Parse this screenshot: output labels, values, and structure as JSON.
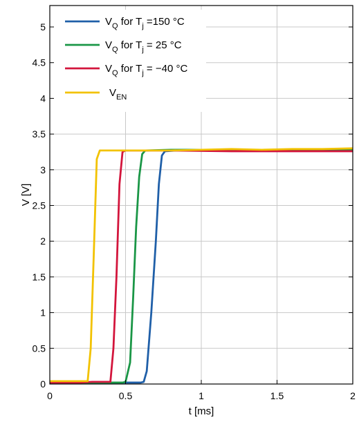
{
  "chart_data": {
    "type": "line",
    "xlabel": "t [ms]",
    "ylabel": "V [V]",
    "xlim": [
      0,
      2
    ],
    "ylim": [
      0,
      5.3
    ],
    "xticks": [
      0,
      0.5,
      1,
      1.5,
      2
    ],
    "xtick_labels": [
      "0",
      "0.5",
      "1",
      "1.5",
      "2"
    ],
    "yticks": [
      0,
      0.5,
      1,
      1.5,
      2,
      2.5,
      3,
      3.5,
      4,
      4.5,
      5
    ],
    "ytick_labels": [
      "0",
      "0.5",
      "1",
      "1.5",
      "2",
      "2.5",
      "3",
      "3.5",
      "4",
      "4.5",
      "5"
    ],
    "grid": true,
    "legend_position": "top-left",
    "series": [
      {
        "legend": {
          "main": "V",
          "sub": "Q",
          "mid": " for T",
          "sub2": "j",
          "rest": " =150 °C"
        },
        "color": "#1f5fa8",
        "points": [
          [
            0,
            0.02
          ],
          [
            0.2,
            0.02
          ],
          [
            0.4,
            0.02
          ],
          [
            0.6,
            0.02
          ],
          [
            0.62,
            0.03
          ],
          [
            0.64,
            0.18
          ],
          [
            0.67,
            1.0
          ],
          [
            0.7,
            2.0
          ],
          [
            0.72,
            2.8
          ],
          [
            0.74,
            3.2
          ],
          [
            0.76,
            3.26
          ],
          [
            0.9,
            3.28
          ],
          [
            1.2,
            3.28
          ],
          [
            1.5,
            3.28
          ],
          [
            1.8,
            3.28
          ],
          [
            2.0,
            3.28
          ]
        ]
      },
      {
        "legend": {
          "main": "V",
          "sub": "Q",
          "mid": " for T",
          "sub2": "j",
          "rest": " = 25 °C"
        },
        "color": "#1a9646",
        "points": [
          [
            0,
            0.02
          ],
          [
            0.2,
            0.02
          ],
          [
            0.4,
            0.02
          ],
          [
            0.48,
            0.02
          ],
          [
            0.5,
            0.03
          ],
          [
            0.53,
            0.3
          ],
          [
            0.55,
            1.2
          ],
          [
            0.57,
            2.2
          ],
          [
            0.59,
            2.9
          ],
          [
            0.61,
            3.22
          ],
          [
            0.63,
            3.27
          ],
          [
            0.8,
            3.28
          ],
          [
            1.2,
            3.28
          ],
          [
            1.5,
            3.28
          ],
          [
            1.8,
            3.28
          ],
          [
            2.0,
            3.28
          ]
        ]
      },
      {
        "legend": {
          "main": "V",
          "sub": "Q",
          "mid": " for T",
          "sub2": "j",
          "rest": " = −40 °C"
        },
        "color": "#d3153c",
        "points": [
          [
            0,
            0.02
          ],
          [
            0.2,
            0.02
          ],
          [
            0.28,
            0.03
          ],
          [
            0.4,
            0.03
          ],
          [
            0.42,
            0.5
          ],
          [
            0.44,
            1.5
          ],
          [
            0.46,
            2.8
          ],
          [
            0.48,
            3.25
          ],
          [
            0.5,
            3.27
          ],
          [
            0.8,
            3.27
          ],
          [
            1.2,
            3.26
          ],
          [
            1.5,
            3.26
          ],
          [
            1.8,
            3.26
          ],
          [
            2.0,
            3.26
          ]
        ]
      },
      {
        "legend": {
          "main": "V",
          "sub": "EN",
          "mid": "",
          "sub2": "",
          "rest": ""
        },
        "color": "#f2c200",
        "points": [
          [
            0,
            0.04
          ],
          [
            0.1,
            0.04
          ],
          [
            0.25,
            0.04
          ],
          [
            0.27,
            0.5
          ],
          [
            0.29,
            1.8
          ],
          [
            0.31,
            3.15
          ],
          [
            0.33,
            3.27
          ],
          [
            0.5,
            3.27
          ],
          [
            0.8,
            3.27
          ],
          [
            1.0,
            3.28
          ],
          [
            1.2,
            3.29
          ],
          [
            1.4,
            3.28
          ],
          [
            1.6,
            3.29
          ],
          [
            1.8,
            3.29
          ],
          [
            2.0,
            3.3
          ]
        ]
      }
    ]
  }
}
